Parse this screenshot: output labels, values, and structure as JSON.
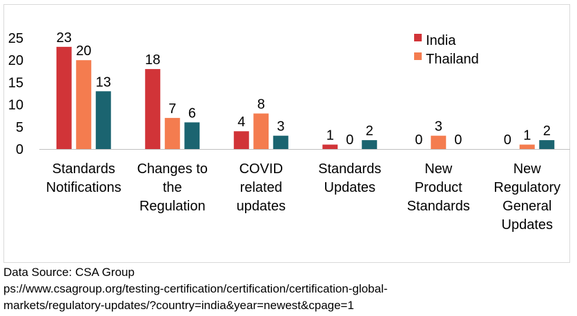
{
  "chart_data": {
    "type": "bar",
    "categories": [
      [
        "Standards",
        "Notifications"
      ],
      [
        "Changes to",
        "the",
        "Regulation"
      ],
      [
        "COVID",
        "related",
        "updates"
      ],
      [
        "Standards",
        "Updates"
      ],
      [
        "New",
        "Product",
        "Standards"
      ],
      [
        "New",
        "Regulatory",
        "General",
        "Updates"
      ]
    ],
    "series": [
      {
        "name": "India",
        "color": "#d13438",
        "values": [
          23,
          18,
          4,
          1,
          0,
          0
        ]
      },
      {
        "name": "Thailand",
        "color": "#f47c4f",
        "values": [
          20,
          7,
          8,
          0,
          3,
          1
        ]
      },
      {
        "name": "",
        "color": "#1b6470",
        "values": [
          13,
          6,
          3,
          2,
          0,
          2
        ]
      }
    ],
    "ylim": [
      0,
      25
    ],
    "yticks": [
      0,
      5,
      10,
      15,
      20,
      25
    ],
    "legend_position": "top-right",
    "grid": false,
    "data_labels": true
  },
  "source": {
    "line1": "Data Source: CSA Group",
    "line2": "ps://www.csagroup.org/testing-certification/certification/certification-global-",
    "line3": "markets/regulatory-updates/?country=india&year=newest&cpage=1"
  }
}
